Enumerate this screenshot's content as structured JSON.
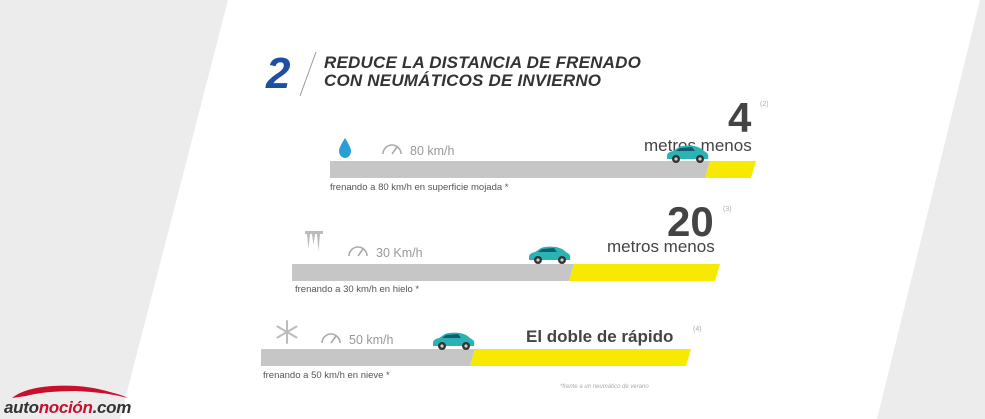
{
  "header": {
    "number": "2",
    "title_line1": "REDUCE LA DISTANCIA DE FRENADO",
    "title_line2": "CON NEUMÁTICOS DE INVIERNO"
  },
  "rows": [
    {
      "condition_icon": "water-drop-icon",
      "speed_label": "80 km/h",
      "caption": "frenando a 80 km/h en superficie mojada *",
      "headline_value": "4",
      "headline_note": "(2)",
      "headline_label": "metros menos"
    },
    {
      "condition_icon": "icicles-icon",
      "speed_label": "30 Km/h",
      "caption": "frenando a 30 km/h en hielo *",
      "headline_value": "20",
      "headline_note": "(3)",
      "headline_label": "metros menos"
    },
    {
      "condition_icon": "snowflake-icon",
      "speed_label": "50 km/h",
      "caption": "frenando a 50 km/h en nieve *",
      "headline_label": "El doble de rápido",
      "headline_note": "(4)"
    }
  ],
  "footnote": "*frente a un  neumático de verano",
  "logo": {
    "part1": "auto",
    "part2": "noción",
    "part3": ".com"
  },
  "colors": {
    "accent_blue": "#1d4fa3",
    "bar_gray": "#c6c6c6",
    "bar_yellow": "#f7ea00",
    "car": "#2bb3b3",
    "logo_red": "#c8102e"
  }
}
